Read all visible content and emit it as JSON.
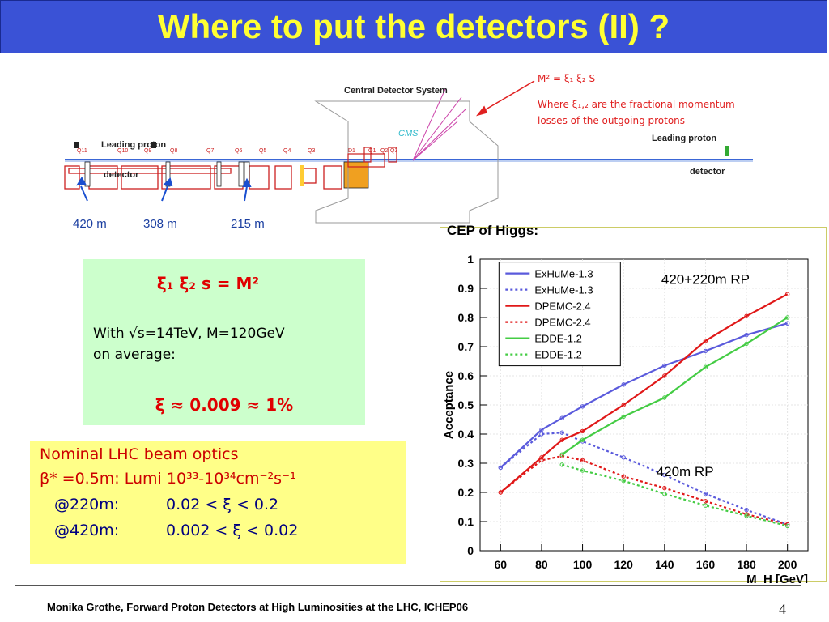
{
  "title": "Where to put the detectors (II) ?",
  "diagram": {
    "central_label": "Central Detector System",
    "cms_label": "CMS",
    "leading_proton_left": "Leading proton",
    "detector_left": "detector",
    "leading_proton_right": "Leading proton",
    "detector_right": "detector",
    "magnet_labels": [
      "Q11",
      "Q10",
      "Q9",
      "Q8",
      "Q7",
      "Q6",
      "Q5",
      "Q4",
      "Q3",
      "D1",
      "Q1",
      "Q2",
      "Q3"
    ],
    "distances": [
      "420 m",
      "308 m",
      "215 m"
    ],
    "annotation_formula": "M² = ξ₁ ξ₂ S",
    "annotation_text_1": "Where ξ₁,₂ are the fractional momentum",
    "annotation_text_2": "losses of the outgoing protons"
  },
  "green_box": {
    "equation": "ξ₁ ξ₂ s = M²",
    "line1": "With √s=14TeV, M=120GeV",
    "line2": "on average:",
    "result": "ξ ≈ 0.009 ≈ 1%"
  },
  "yellow_box": {
    "line1": "Nominal LHC beam optics",
    "line2": "β* =0.5m: Lumi 10³³-10³⁴cm⁻²s⁻¹",
    "row1_label": "@220m:",
    "row1_value": "0.02 < ξ < 0.2",
    "row2_label": "@420m:",
    "row2_value": "0.002 < ξ < 0.02"
  },
  "cep_label": "CEP of Higgs:",
  "footer": "Monika Grothe, Forward Proton Detectors at High Luminosities at the LHC, ICHEP06",
  "page_number": "4",
  "colors": {
    "title_bg": "#3a52d6",
    "title_text": "#ffff33",
    "green_box": "#ccffcc",
    "yellow_box": "#ffff88",
    "exhume": "#5a5adc",
    "dpemc": "#e01818",
    "edde": "#44cc44"
  },
  "chart_data": {
    "type": "line",
    "xlabel": "M_H [GeV]",
    "ylabel": "Acceptance",
    "xlim": [
      50,
      210
    ],
    "ylim": [
      0,
      1
    ],
    "x_ticks": [
      "60",
      "80",
      "100",
      "120",
      "140",
      "160",
      "180",
      "200"
    ],
    "y_ticks": [
      "0",
      "0.1",
      "0.2",
      "0.3",
      "0.4",
      "0.5",
      "0.6",
      "0.7",
      "0.8",
      "0.9",
      "1"
    ],
    "annotations": [
      "420+220m RP",
      "420m RP"
    ],
    "legend_position": "top-left",
    "series": [
      {
        "name": "ExHuMe-1.3",
        "group": "420+220m RP",
        "style": "solid",
        "color": "#5a5adc",
        "x": [
          60,
          80,
          90,
          100,
          120,
          140,
          160,
          180,
          200
        ],
        "y": [
          0.285,
          0.415,
          0.455,
          0.495,
          0.57,
          0.635,
          0.685,
          0.74,
          0.78
        ]
      },
      {
        "name": "ExHuMe-1.3",
        "group": "420m RP",
        "style": "dashed",
        "color": "#5a5adc",
        "x": [
          60,
          80,
          90,
          100,
          120,
          140,
          160,
          180,
          200
        ],
        "y": [
          0.285,
          0.4,
          0.405,
          0.375,
          0.32,
          0.26,
          0.195,
          0.14,
          0.09
        ]
      },
      {
        "name": "DPEMC-2.4",
        "group": "420+220m RP",
        "style": "solid",
        "color": "#e01818",
        "x": [
          60,
          80,
          90,
          100,
          120,
          140,
          160,
          180,
          200
        ],
        "y": [
          0.2,
          0.32,
          0.38,
          0.41,
          0.5,
          0.6,
          0.72,
          0.805,
          0.88
        ]
      },
      {
        "name": "DPEMC-2.4",
        "group": "420m RP",
        "style": "dashed",
        "color": "#e01818",
        "x": [
          60,
          80,
          90,
          100,
          120,
          140,
          160,
          180,
          200
        ],
        "y": [
          0.2,
          0.31,
          0.325,
          0.31,
          0.255,
          0.215,
          0.17,
          0.125,
          0.09
        ]
      },
      {
        "name": "EDDE-1.2",
        "group": "420+220m RP",
        "style": "solid",
        "color": "#44cc44",
        "x": [
          90,
          100,
          120,
          140,
          160,
          180,
          200
        ],
        "y": [
          0.33,
          0.38,
          0.46,
          0.525,
          0.63,
          0.71,
          0.8
        ]
      },
      {
        "name": "EDDE-1.2",
        "group": "420m RP",
        "style": "dashed",
        "color": "#44cc44",
        "x": [
          90,
          100,
          120,
          140,
          160,
          180,
          200
        ],
        "y": [
          0.295,
          0.275,
          0.24,
          0.195,
          0.155,
          0.12,
          0.085
        ]
      }
    ]
  }
}
